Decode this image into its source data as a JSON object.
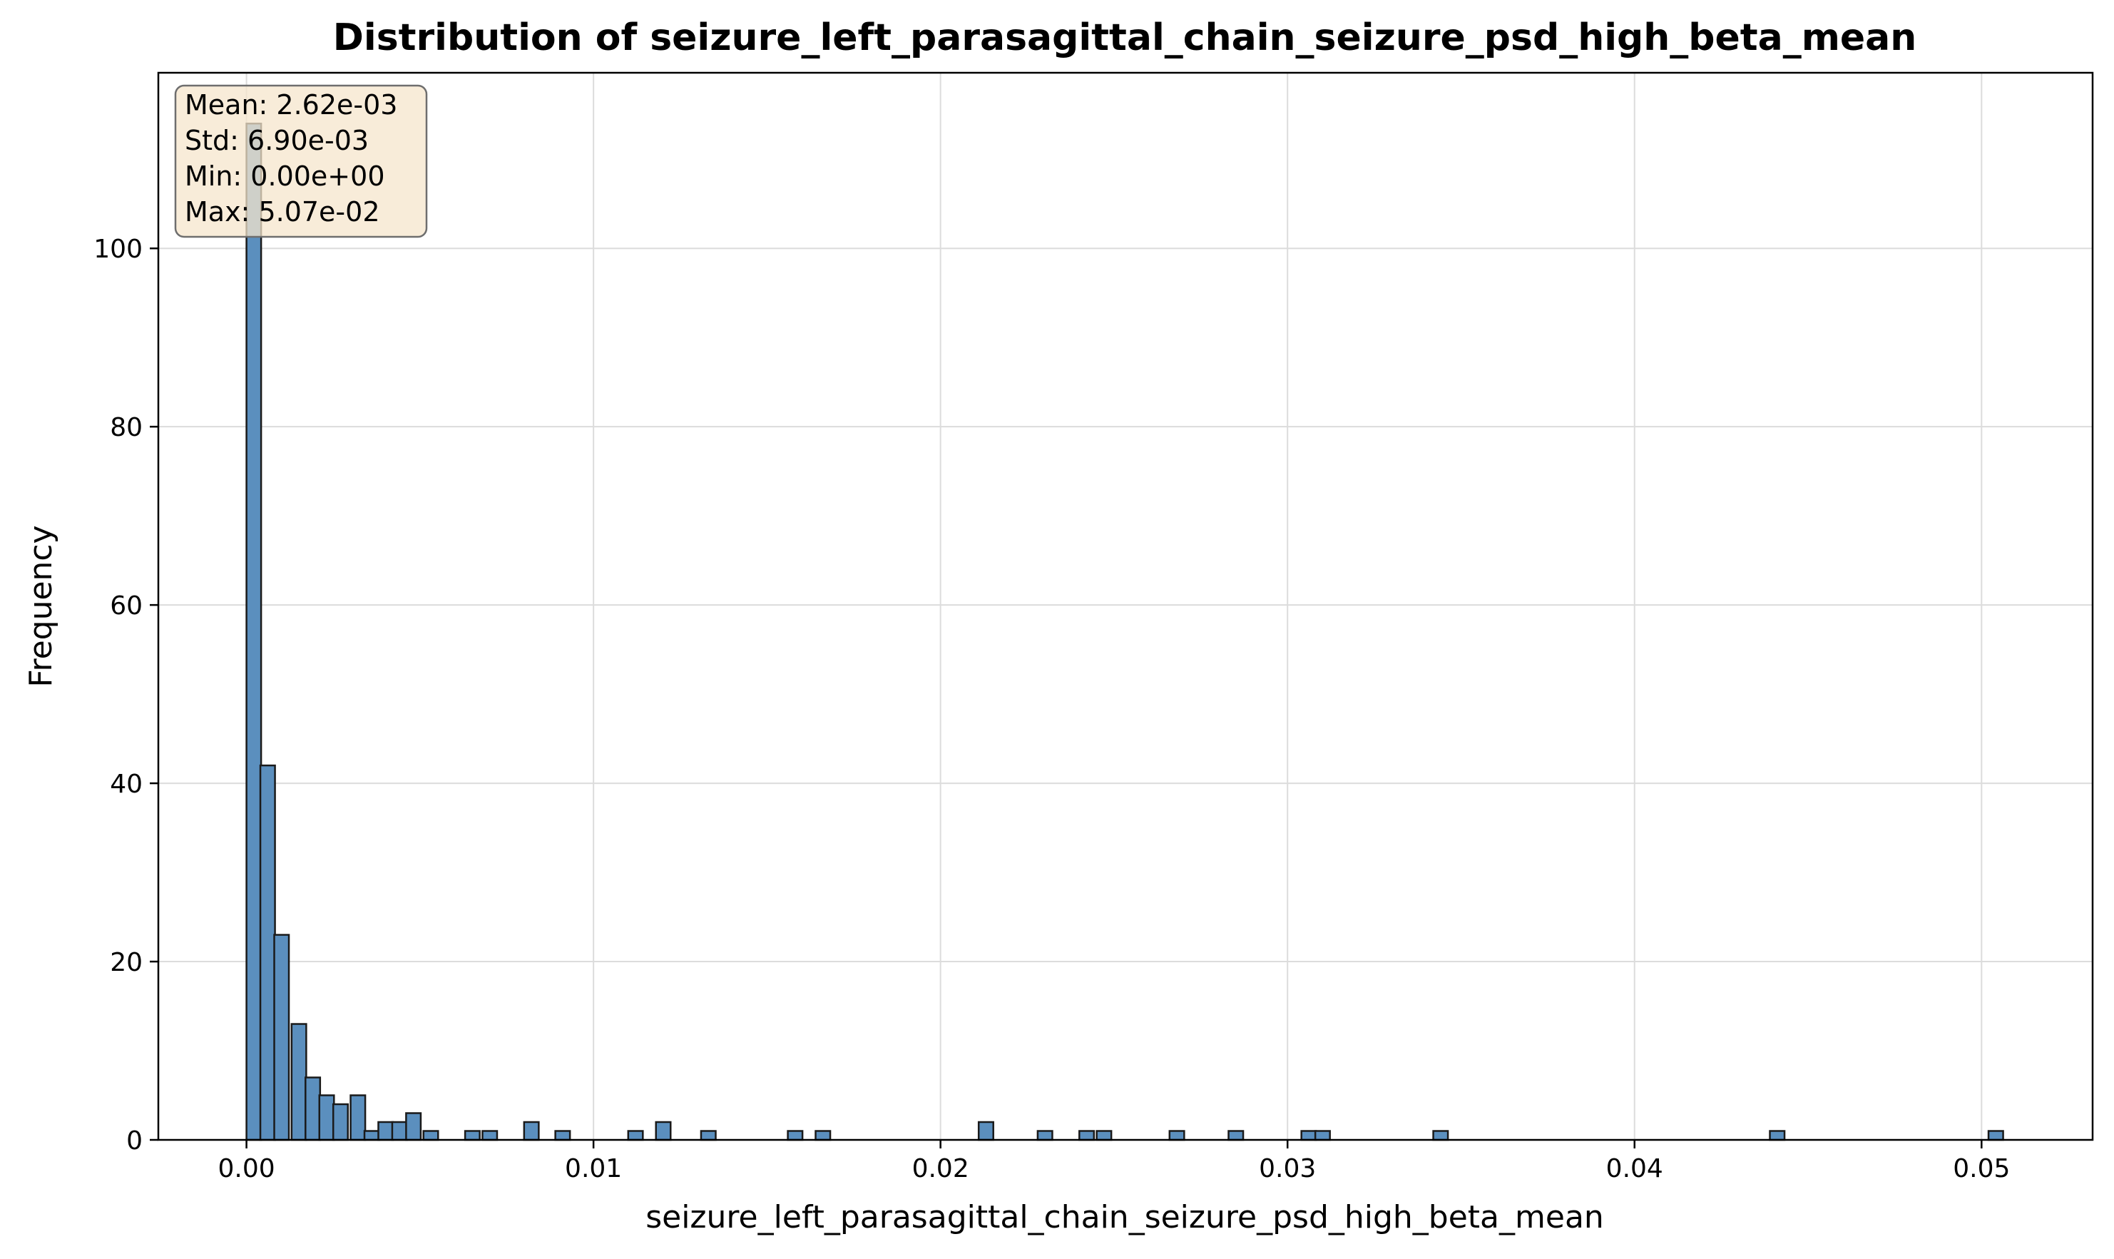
{
  "chart_data": {
    "type": "bar",
    "title": "Distribution of seizure_left_parasagittal_chain_seizure_psd_high_beta_mean",
    "xlabel": "seizure_left_parasagittal_chain_seizure_psd_high_beta_mean",
    "ylabel": "Frequency",
    "xlim": [
      -0.00254,
      0.0532
    ],
    "ylim": [
      0,
      119.7
    ],
    "x_ticks": [
      0.0,
      0.01,
      0.02,
      0.03,
      0.04,
      0.05
    ],
    "x_tick_labels": [
      "0.00",
      "0.01",
      "0.02",
      "0.03",
      "0.04",
      "0.05"
    ],
    "y_ticks": [
      0,
      20,
      40,
      60,
      80,
      100
    ],
    "y_tick_labels": [
      "0",
      "20",
      "40",
      "60",
      "80",
      "100"
    ],
    "grid": true,
    "bar_color": "#5b8fbe",
    "edge_color": "#1a1a1a",
    "bin_width": 0.000422,
    "bins": [
      {
        "x": 0.0,
        "count": 114
      },
      {
        "x": 0.0004,
        "count": 42
      },
      {
        "x": 0.0008,
        "count": 23
      },
      {
        "x": 0.0013,
        "count": 13
      },
      {
        "x": 0.0017,
        "count": 7
      },
      {
        "x": 0.0021,
        "count": 5
      },
      {
        "x": 0.0025,
        "count": 4
      },
      {
        "x": 0.003,
        "count": 5
      },
      {
        "x": 0.0034,
        "count": 1
      },
      {
        "x": 0.0038,
        "count": 2
      },
      {
        "x": 0.0042,
        "count": 2
      },
      {
        "x": 0.0046,
        "count": 3
      },
      {
        "x": 0.0051,
        "count": 1
      },
      {
        "x": 0.0063,
        "count": 1
      },
      {
        "x": 0.0068,
        "count": 1
      },
      {
        "x": 0.008,
        "count": 2
      },
      {
        "x": 0.0089,
        "count": 1
      },
      {
        "x": 0.011,
        "count": 1
      },
      {
        "x": 0.0118,
        "count": 2
      },
      {
        "x": 0.0131,
        "count": 1
      },
      {
        "x": 0.0156,
        "count": 1
      },
      {
        "x": 0.0164,
        "count": 1
      },
      {
        "x": 0.0211,
        "count": 2
      },
      {
        "x": 0.0228,
        "count": 1
      },
      {
        "x": 0.024,
        "count": 1
      },
      {
        "x": 0.0245,
        "count": 1
      },
      {
        "x": 0.0266,
        "count": 1
      },
      {
        "x": 0.0283,
        "count": 1
      },
      {
        "x": 0.0304,
        "count": 1
      },
      {
        "x": 0.0308,
        "count": 1
      },
      {
        "x": 0.0342,
        "count": 1
      },
      {
        "x": 0.0439,
        "count": 1
      },
      {
        "x": 0.0502,
        "count": 1
      }
    ],
    "annotations": [
      "Mean: 2.62e-03",
      "Std: 6.90e-03",
      "Min: 0.00e+00",
      "Max: 5.07e-02"
    ]
  },
  "stats_box": {
    "mean": "Mean: 2.62e-03",
    "std": "Std: 6.90e-03",
    "min": "Min: 0.00e+00",
    "max": "Max: 5.07e-02",
    "fill_color": "#f5e6cc",
    "border_color": "#6e6e6e"
  }
}
